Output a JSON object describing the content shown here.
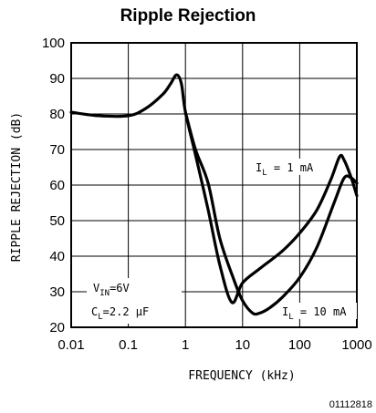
{
  "chart_data": {
    "type": "line",
    "title": "Ripple Rejection",
    "xlabel": "FREQUENCY (kHz)",
    "ylabel": "RIPPLE REJECTION (dB)",
    "x_scale": "log",
    "xlim": [
      0.01,
      1000
    ],
    "ylim": [
      20,
      100
    ],
    "x_ticks": [
      "0.01",
      "0.1",
      "1",
      "10",
      "100",
      "1000"
    ],
    "y_ticks": [
      "20",
      "30",
      "40",
      "50",
      "60",
      "70",
      "80",
      "90",
      "100"
    ],
    "grid": true,
    "series": [
      {
        "name": "IL = 1 mA",
        "x": [
          0.01,
          0.03,
          0.1,
          0.2,
          0.4,
          0.55,
          0.7,
          0.85,
          1.0,
          1.5,
          2.5,
          4.0,
          6.5,
          10,
          20,
          50,
          100,
          200,
          350,
          500,
          600,
          800,
          1000
        ],
        "y": [
          80.5,
          79.5,
          79.5,
          81.5,
          85.5,
          88.5,
          91.0,
          88.5,
          80.5,
          68.5,
          53.0,
          37.5,
          27.0,
          32.5,
          36.5,
          41.5,
          46.5,
          53.0,
          61.5,
          68.0,
          67.0,
          62.0,
          57.0
        ]
      },
      {
        "name": "IL = 10 mA",
        "x": [
          1.0,
          1.5,
          2.5,
          4.0,
          7,
          10,
          15,
          20,
          30,
          50,
          100,
          200,
          400,
          600,
          800,
          1000
        ],
        "y": [
          80.5,
          70.0,
          60.5,
          45.0,
          33.5,
          27.5,
          24.0,
          24.0,
          25.5,
          28.5,
          34.0,
          42.5,
          55.0,
          62.0,
          62.0,
          60.5
        ]
      }
    ],
    "annotations": {
      "il1": {
        "main": "I",
        "sub": "L",
        "rest": " = 1 mA"
      },
      "il10": {
        "main": "I",
        "sub": "L",
        "rest": " = 10 mA"
      },
      "vin": {
        "main": "V",
        "sub": "IN",
        "rest": "=6V"
      },
      "cl": {
        "main": "C",
        "sub": "L",
        "rest": "=2.2 μF"
      }
    },
    "figure_code": "01112818"
  }
}
